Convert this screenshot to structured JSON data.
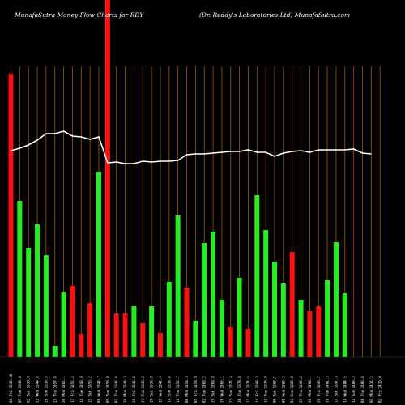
{
  "header": {
    "left": "MunafaSutra  Money Flow  Charts for RDY",
    "right": "(Dr. Reddy's Laboratories Ltd) MunafaSutra.com"
  },
  "chart_data": {
    "type": "bar",
    "title": "MunafaSutra Money Flow Charts for RDY",
    "subtitle": "(Dr. Reddy's Laboratories Ltd) MunafaSutra.com",
    "grid": true,
    "categories": [
      "1",
      "2",
      "3",
      "4",
      "5",
      "6",
      "7",
      "8",
      "9",
      "10",
      "11",
      "12",
      "13",
      "14",
      "15",
      "16",
      "17",
      "18",
      "19",
      "20",
      "21",
      "22",
      "23",
      "24",
      "25",
      "26",
      "27",
      "28",
      "29",
      "30",
      "31",
      "32",
      "33",
      "34",
      "35",
      "36",
      "37",
      "38",
      "39",
      "40",
      "41",
      "42",
      "43"
    ],
    "x_labels": [
      "08 Fri 1349.30",
      "05 Tue 1338.0",
      "02 Sat 1333.3",
      "29 Wed 1344.6",
      "26 Sun 1339.5",
      "23 Thu 1357.8",
      "20 Mon 1362.1",
      "17 Fri 1351.4",
      "14 Tue 1343.9",
      "11 Sat 1356.2",
      "08 Wed 1348.7",
      "05 Sun 1353.0",
      "02 Thu 1347.6",
      "29 Mon 1349.3",
      "26 Fri 1341.8",
      "23 Tue 1345.2",
      "20 Sat 1336.9",
      "17 Wed 1341.4",
      "14 Sun 1339.8",
      "11 Thu 1352.7",
      "08 Mon 1358.3",
      "05 Fri 1354.9",
      "02 Tue 1363.2",
      "29 Sat 1369.8",
      "26 Wed 1366.1",
      "23 Sun 1372.4",
      "20 Thu 1378.0",
      "17 Mon 1374.6",
      "14 Fri 1380.3",
      "11 Tue 1376.9",
      "08 Sat 1383.5",
      "05 Wed 1389.2",
      "02 Sun 1386.8",
      "29 Thu 1392.4",
      "26 Mon 1398.1",
      "23 Fri 1395.7",
      "20 Tue 1401.3",
      "17 Sat 1397.9",
      "14 Wed 1404.6",
      "11 Sun 1409.2",
      "08 Thu 1406.8",
      "05 Mon 1411.5",
      "02 Fri 1416.0"
    ],
    "colors": [
      "red",
      "green",
      "green",
      "green",
      "green",
      "green",
      "green",
      "red",
      "red",
      "red",
      "green",
      "red",
      "red",
      "red",
      "green",
      "red",
      "green",
      "red",
      "green",
      "green",
      "red",
      "green",
      "green",
      "green",
      "green",
      "red",
      "green",
      "red",
      "green",
      "green",
      "green",
      "green",
      "red",
      "green",
      "red",
      "red",
      "green",
      "green",
      "green",
      "green",
      "green",
      "red",
      "green"
    ],
    "values": [
      350,
      193,
      135,
      164,
      126,
      14,
      80,
      88,
      29,
      67,
      229,
      91,
      54,
      54,
      63,
      42,
      63,
      30,
      93,
      175,
      86,
      45,
      141,
      155,
      71,
      37,
      98,
      35,
      200,
      157,
      118,
      91,
      130,
      71,
      57,
      63,
      95,
      142,
      79,
      0,
      0,
      0,
      0
    ],
    "line": [
      255,
      258,
      262,
      268,
      276,
      276,
      279,
      273,
      272,
      269,
      272,
      240,
      241,
      239,
      239,
      242,
      241,
      242,
      242,
      243,
      250,
      251,
      251,
      252,
      253,
      254,
      254,
      256,
      253,
      253,
      248,
      252,
      254,
      255,
      253,
      256,
      256,
      256,
      256,
      257,
      252,
      251,
      0
    ],
    "line_series_name": "",
    "overflow_bar_index": 11,
    "palette": {
      "red": "#ff1010",
      "green": "#22ee22",
      "line": "#ffffff",
      "grid": "#9a5a00",
      "bg": "#000000"
    }
  }
}
